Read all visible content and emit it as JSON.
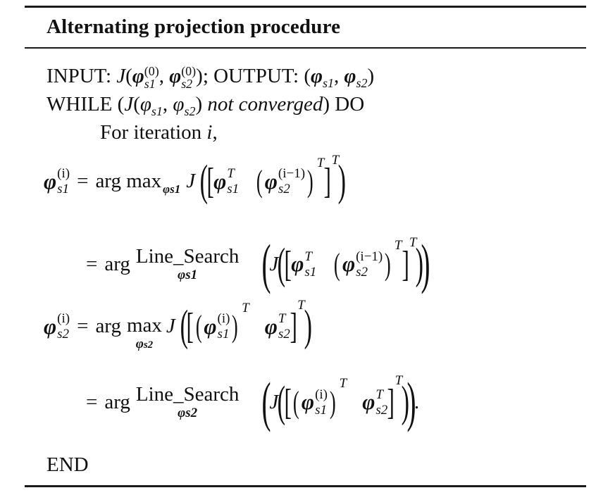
{
  "header": {
    "title": "Alternating projection procedure"
  },
  "algorithm": {
    "input_label": "INPUT:",
    "output_label": "; OUTPUT:",
    "while_label": "WHILE",
    "not_converged": "not converged",
    "do_label": "DO",
    "for_iteration": "For iteration",
    "end_label": "END"
  },
  "math": {
    "J": "J",
    "phi": "φ",
    "s1": "s1",
    "s2": "s2",
    "sup_i": "(i)",
    "sup_0": "(0)",
    "sup_i_minus_1": "(i−1)",
    "T": "T",
    "arg_max": "arg max",
    "arg": "arg",
    "max": "max",
    "line_search": "Line_Search",
    "equals": "=",
    "iter_var": "i"
  }
}
